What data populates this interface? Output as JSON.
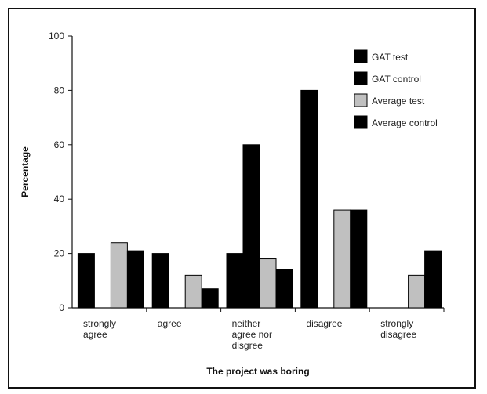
{
  "chart_data": {
    "type": "bar",
    "title": "",
    "xlabel": "The project was boring",
    "ylabel": "Percentage",
    "ylim": [
      0,
      100
    ],
    "yticks": [
      0,
      20,
      40,
      60,
      80,
      100
    ],
    "categories": [
      [
        "strongly",
        "agree"
      ],
      [
        "agree"
      ],
      [
        "neither",
        "agree nor",
        "disgree"
      ],
      [
        "disagree"
      ],
      [
        "strongly",
        "disagree"
      ]
    ],
    "series": [
      {
        "name": "GAT test",
        "color": "#000000",
        "values": [
          20,
          20,
          20,
          80,
          0
        ]
      },
      {
        "name": "GAT control",
        "color": "#000000",
        "values": [
          0,
          0,
          60,
          0,
          0
        ]
      },
      {
        "name": "Average test",
        "color": "#c0c0c0",
        "values": [
          24,
          12,
          18,
          36,
          12
        ]
      },
      {
        "name": "Average control",
        "color": "#000000",
        "values": [
          21,
          7,
          14,
          36,
          21
        ]
      }
    ],
    "legend_position": "top-right",
    "grid": false
  }
}
